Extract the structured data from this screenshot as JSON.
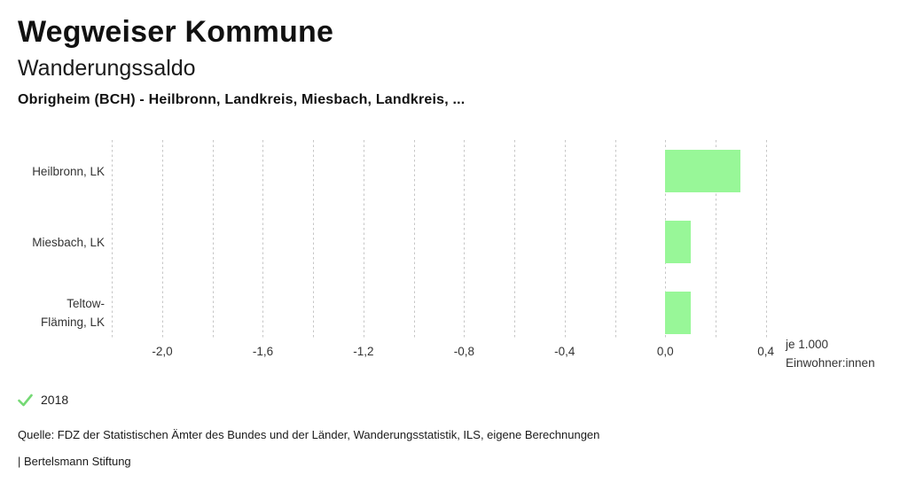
{
  "header": {
    "app_title": "Wegweiser Kommune",
    "chart_title": "Wanderungssaldo",
    "chart_subtitle": "Obrigheim (BCH) - Heilbronn, Landkreis, Miesbach, Landkreis, ..."
  },
  "chart_data": {
    "type": "bar",
    "orientation": "horizontal",
    "title": "Wanderungssaldo",
    "categories": [
      "Heilbronn, LK",
      "Miesbach, LK",
      "Teltow-Fläming, LK"
    ],
    "series": [
      {
        "name": "2018",
        "values": [
          0.3,
          0.1,
          0.1
        ]
      }
    ],
    "unit_label": [
      "je 1.000",
      "Einwohner:innen"
    ],
    "xlim": [
      -2.24,
      0.44
    ],
    "gridline_values": [
      -2.2,
      -2.0,
      -1.8,
      -1.6,
      -1.4,
      -1.2,
      -1.0,
      -0.8,
      -0.6,
      -0.4,
      -0.2,
      0.0,
      0.2,
      0.4
    ],
    "x_ticks": [
      {
        "value": -2.0,
        "label": "-2,0"
      },
      {
        "value": -1.6,
        "label": "-1,6"
      },
      {
        "value": -1.2,
        "label": "-1,2"
      },
      {
        "value": -0.8,
        "label": "-0,8"
      },
      {
        "value": -0.4,
        "label": "-0,4"
      },
      {
        "value": 0.0,
        "label": "0,0"
      },
      {
        "value": 0.4,
        "label": "0,4"
      }
    ],
    "grid": true,
    "legend_position": "bottom-left",
    "bar_color": "#98f798",
    "legend": [
      {
        "label": "2018",
        "marker": "check-icon",
        "color": "#74d974"
      }
    ]
  },
  "footer": {
    "source": "Quelle: FDZ der Statistischen Ämter des Bundes und der Länder, Wanderungsstatistik, ILS, eigene Berechnungen",
    "attribution": "| Bertelsmann Stiftung"
  }
}
